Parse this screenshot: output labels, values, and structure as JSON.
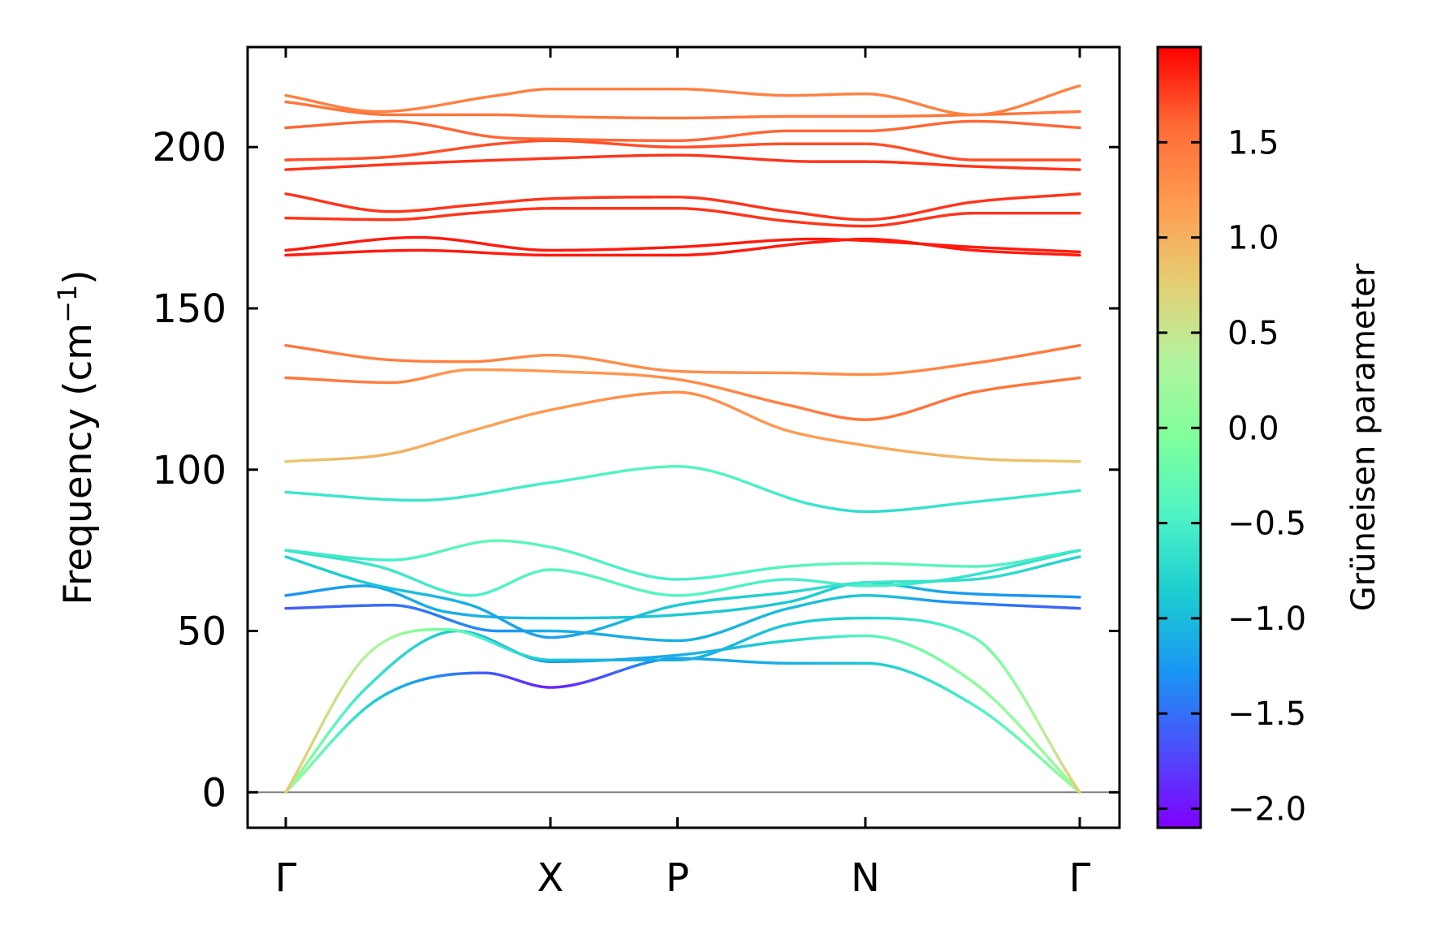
{
  "chart_data": {
    "type": "line",
    "title": "",
    "ylabel": "Frequency (cm⁻¹)",
    "ylabel_main": "Frequency (cm",
    "ylabel_sup": "−1",
    "ylabel_close": ")",
    "colorbar_label": "Grüneisen parameter",
    "ylim": [
      -11,
      231
    ],
    "yticks": [
      0,
      50,
      100,
      150,
      200
    ],
    "ytick_labels": [
      "0",
      "50",
      "100",
      "150",
      "200"
    ],
    "zero_line": true,
    "x_path_length": 3.0,
    "high_symmetry_points": [
      {
        "label": "Γ",
        "x": 0.0
      },
      {
        "label": "X",
        "x": 1.0
      },
      {
        "label": "P",
        "x": 1.48
      },
      {
        "label": "N",
        "x": 2.19
      },
      {
        "label": "Γ",
        "x": 3.0
      }
    ],
    "colorbar": {
      "min": -2.1,
      "max": 2.0,
      "ticks": [
        -2.0,
        -1.5,
        -1.0,
        -0.5,
        0.0,
        0.5,
        1.0,
        1.5
      ],
      "tick_labels": [
        "−2.0",
        "−1.5",
        "−1.0",
        "−0.5",
        "0.0",
        "0.5",
        "1.0",
        "1.5"
      ],
      "colormap": [
        "#7f00ff",
        "#4c4efa",
        "#1996f3",
        "#1ccdd1",
        "#4df3c6",
        "#80ff9b",
        "#b3f39e",
        "#e6cd72",
        "#ff9b52",
        "#ff6a35",
        "#ff0000"
      ]
    },
    "series": [
      {
        "x": [
          0,
          0.35,
          0.75,
          1.0,
          1.48,
          1.9,
          2.19,
          2.6,
          3.0
        ],
        "values": [
          0,
          29,
          37,
          32.5,
          41.5,
          40,
          40,
          27,
          0
        ],
        "gruneisen": [
          0.2,
          -0.9,
          -1.6,
          -1.9,
          -1.2,
          -1.1,
          -0.9,
          -0.5,
          0.1
        ]
      },
      {
        "x": [
          0,
          0.3,
          0.65,
          1.0,
          1.48,
          1.9,
          2.19,
          2.6,
          3.0
        ],
        "values": [
          0,
          32,
          50,
          40.5,
          42.5,
          47,
          48.5,
          34,
          0
        ],
        "gruneisen": [
          0.2,
          -0.6,
          -0.9,
          -1.3,
          -1.1,
          -0.8,
          -0.4,
          0.0,
          0.2
        ]
      },
      {
        "x": [
          0,
          0.3,
          0.6,
          1.0,
          1.48,
          1.9,
          2.19,
          2.6,
          3.0
        ],
        "values": [
          0,
          42,
          50.5,
          41,
          41,
          52,
          54,
          48,
          0
        ],
        "gruneisen": [
          0.8,
          0.4,
          -0.2,
          -0.9,
          -1.1,
          -0.9,
          -0.8,
          -0.3,
          0.8
        ]
      },
      {
        "x": [
          0,
          0.4,
          0.8,
          1.0,
          1.48,
          1.9,
          2.19,
          2.5,
          3.0
        ],
        "values": [
          57,
          58,
          50,
          50,
          47,
          57,
          61,
          59,
          57
        ],
        "gruneisen": [
          -1.6,
          -1.5,
          -1.3,
          -1.1,
          -1.1,
          -1.0,
          -0.9,
          -1.3,
          -1.6
        ]
      },
      {
        "x": [
          0,
          0.3,
          0.6,
          1.0,
          1.48,
          1.9,
          2.19,
          2.5,
          3.0
        ],
        "values": [
          61,
          64,
          56,
          54,
          55,
          59,
          65,
          62,
          60.5
        ],
        "gruneisen": [
          -1.3,
          -1.2,
          -1.1,
          -1.0,
          -0.9,
          -0.9,
          -0.8,
          -1.2,
          -1.3
        ]
      },
      {
        "x": [
          0,
          0.35,
          0.7,
          1.0,
          1.48,
          1.9,
          2.19,
          2.5,
          3.0
        ],
        "values": [
          75,
          70,
          61,
          69,
          61,
          66,
          64,
          66,
          75
        ],
        "gruneisen": [
          -0.7,
          -0.6,
          -0.5,
          -0.4,
          -0.4,
          -0.5,
          -0.5,
          -0.6,
          -0.7
        ]
      },
      {
        "x": [
          0,
          0.4,
          0.8,
          1.0,
          1.48,
          1.9,
          2.19,
          2.6,
          3.0
        ],
        "values": [
          75,
          72,
          78,
          76,
          66,
          70,
          71,
          70,
          75
        ],
        "gruneisen": [
          -0.6,
          -0.5,
          -0.3,
          -0.4,
          -0.5,
          -0.4,
          -0.3,
          -0.4,
          -0.6
        ]
      },
      {
        "x": [
          0,
          0.3,
          0.7,
          1.0,
          1.48,
          1.9,
          2.19,
          2.6,
          3.0
        ],
        "values": [
          73,
          65,
          58,
          48,
          58,
          62,
          65,
          66,
          73
        ],
        "gruneisen": [
          -0.8,
          -0.9,
          -1.1,
          -1.2,
          -0.9,
          -0.8,
          -0.6,
          -0.7,
          -0.8
        ]
      },
      {
        "x": [
          0,
          0.5,
          1.0,
          1.48,
          2.0,
          2.19,
          2.6,
          3.0
        ],
        "values": [
          93,
          90.5,
          96,
          101,
          89,
          87,
          90,
          93.5
        ],
        "gruneisen": [
          -0.6,
          -0.6,
          -0.5,
          -0.4,
          -0.6,
          -0.7,
          -0.6,
          -0.6
        ]
      },
      {
        "x": [
          0,
          0.4,
          0.7,
          1.0,
          1.48,
          1.9,
          2.19,
          2.6,
          3.0
        ],
        "values": [
          102.5,
          105,
          112,
          118.5,
          124,
          112,
          107.5,
          103.5,
          102.5
        ],
        "gruneisen": [
          0.8,
          1.0,
          1.1,
          1.2,
          1.3,
          1.2,
          1.1,
          0.9,
          0.8
        ]
      },
      {
        "x": [
          0,
          0.4,
          0.7,
          1.0,
          1.48,
          1.9,
          2.19,
          2.6,
          3.0
        ],
        "values": [
          128.5,
          127,
          131,
          130.5,
          128,
          120,
          115.5,
          124,
          128.5
        ],
        "gruneisen": [
          1.5,
          1.4,
          1.2,
          1.2,
          1.3,
          1.4,
          1.5,
          1.5,
          1.5
        ]
      },
      {
        "x": [
          0,
          0.4,
          0.7,
          1.0,
          1.48,
          1.9,
          2.19,
          2.6,
          3.0
        ],
        "values": [
          138.5,
          134,
          133.5,
          135.5,
          130.5,
          130,
          129.5,
          133,
          138.5
        ],
        "gruneisen": [
          1.5,
          1.4,
          1.4,
          1.3,
          1.3,
          1.3,
          1.3,
          1.4,
          1.5
        ]
      },
      {
        "x": [
          0,
          0.5,
          1.0,
          1.48,
          2.0,
          2.19,
          2.6,
          3.0
        ],
        "values": [
          166.5,
          168,
          166.5,
          166.5,
          170.5,
          171.5,
          168,
          166.5
        ],
        "gruneisen": [
          1.9,
          1.9,
          1.9,
          1.9,
          1.9,
          1.9,
          1.9,
          1.9
        ]
      },
      {
        "x": [
          0,
          0.5,
          1.0,
          1.48,
          2.0,
          2.19,
          2.6,
          3.0
        ],
        "values": [
          168,
          172,
          168,
          169,
          171.5,
          171,
          169,
          167.5
        ],
        "gruneisen": [
          1.9,
          1.9,
          1.9,
          1.9,
          1.9,
          1.9,
          1.9,
          1.9
        ]
      },
      {
        "x": [
          0,
          0.4,
          0.7,
          1.0,
          1.48,
          1.9,
          2.19,
          2.6,
          3.0
        ],
        "values": [
          178,
          177.5,
          179.5,
          181,
          181,
          177,
          175.5,
          179.5,
          179.5
        ],
        "gruneisen": [
          1.8,
          1.8,
          1.8,
          1.8,
          1.8,
          1.8,
          1.8,
          1.8,
          1.8
        ]
      },
      {
        "x": [
          0,
          0.4,
          0.7,
          1.0,
          1.48,
          1.9,
          2.19,
          2.6,
          3.0
        ],
        "values": [
          185.5,
          180,
          182,
          184,
          184.5,
          180,
          177.5,
          183,
          185.5
        ],
        "gruneisen": [
          1.8,
          1.8,
          1.8,
          1.8,
          1.8,
          1.8,
          1.8,
          1.8,
          1.8
        ]
      },
      {
        "x": [
          0,
          0.5,
          1.0,
          1.48,
          2.0,
          2.19,
          2.6,
          3.0
        ],
        "values": [
          193,
          195,
          196.5,
          197.5,
          195.5,
          195.5,
          194,
          193
        ],
        "gruneisen": [
          1.8,
          1.8,
          1.8,
          1.8,
          1.8,
          1.8,
          1.8,
          1.8
        ]
      },
      {
        "x": [
          0,
          0.4,
          0.8,
          1.0,
          1.48,
          1.9,
          2.19,
          2.6,
          3.0
        ],
        "values": [
          196,
          197,
          201,
          202,
          200,
          201,
          201,
          196,
          196
        ],
        "gruneisen": [
          1.7,
          1.7,
          1.7,
          1.7,
          1.7,
          1.7,
          1.7,
          1.7,
          1.7
        ]
      },
      {
        "x": [
          0,
          0.4,
          0.8,
          1.0,
          1.48,
          1.9,
          2.19,
          2.6,
          3.0
        ],
        "values": [
          206,
          208,
          203,
          202.5,
          202,
          205,
          205,
          208,
          206
        ],
        "gruneisen": [
          1.6,
          1.6,
          1.6,
          1.6,
          1.6,
          1.6,
          1.6,
          1.6,
          1.6
        ]
      },
      {
        "x": [
          0,
          0.4,
          0.8,
          1.0,
          1.48,
          1.9,
          2.19,
          2.6,
          3.0
        ],
        "values": [
          214,
          210,
          210,
          209.5,
          209,
          209.5,
          209.5,
          210,
          211
        ],
        "gruneisen": [
          1.5,
          1.5,
          1.5,
          1.5,
          1.5,
          1.5,
          1.5,
          1.5,
          1.5
        ]
      },
      {
        "x": [
          0,
          0.35,
          0.8,
          1.0,
          1.48,
          1.9,
          2.19,
          2.6,
          3.0
        ],
        "values": [
          216,
          211,
          216,
          218,
          218,
          216,
          216.5,
          210,
          219
        ],
        "gruneisen": [
          1.4,
          1.4,
          1.4,
          1.4,
          1.4,
          1.4,
          1.4,
          1.4,
          1.4
        ]
      }
    ]
  }
}
